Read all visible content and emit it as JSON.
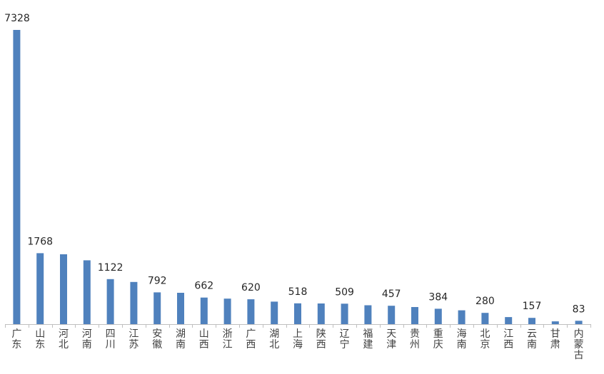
{
  "chart_data": {
    "type": "bar",
    "categories": [
      "广东",
      "山东",
      "河北",
      "河南",
      "四川",
      "江苏",
      "安徽",
      "湖南",
      "山西",
      "浙江",
      "广西",
      "湖北",
      "上海",
      "陕西",
      "辽宁",
      "福建",
      "天津",
      "贵州",
      "重庆",
      "海南",
      "北京",
      "江西",
      "云南",
      "甘肃",
      "内蒙古"
    ],
    "values": [
      7328,
      1768,
      1740,
      1590,
      1122,
      1050,
      792,
      780,
      662,
      635,
      620,
      560,
      518,
      515,
      509,
      470,
      457,
      425,
      384,
      345,
      280,
      175,
      157,
      70,
      83
    ],
    "data_labels": [
      {
        "index": 0,
        "text": "7328"
      },
      {
        "index": 1,
        "text": "1768"
      },
      {
        "index": 4,
        "text": "1122"
      },
      {
        "index": 6,
        "text": "792"
      },
      {
        "index": 8,
        "text": "662"
      },
      {
        "index": 10,
        "text": "620"
      },
      {
        "index": 12,
        "text": "518"
      },
      {
        "index": 14,
        "text": "509"
      },
      {
        "index": 16,
        "text": "457"
      },
      {
        "index": 18,
        "text": "384"
      },
      {
        "index": 20,
        "text": "280"
      },
      {
        "index": 22,
        "text": "157"
      },
      {
        "index": 24,
        "text": "83"
      }
    ],
    "ylim": [
      0,
      7328
    ],
    "grid": false,
    "legend": "none",
    "colors": {
      "bar": "#4f81bd",
      "axis": "#bfbfbf",
      "label": "#262626",
      "category": "#404040"
    }
  }
}
